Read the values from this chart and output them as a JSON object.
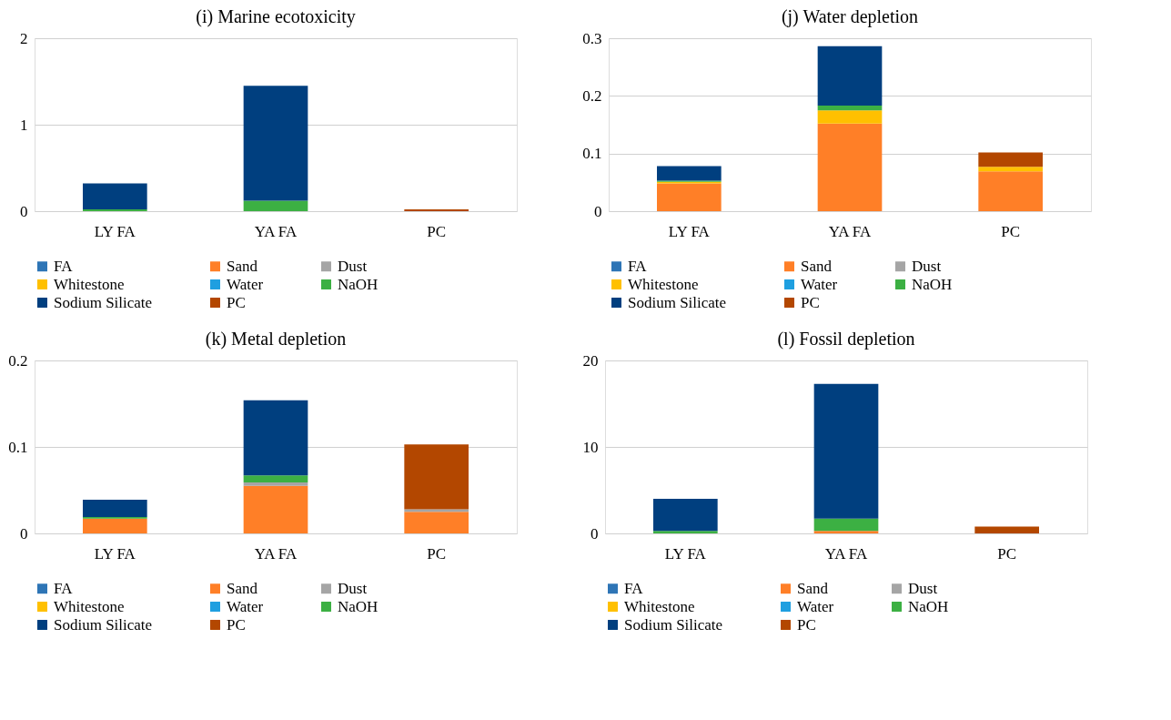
{
  "chart_data": [
    {
      "type": "bar",
      "stacked": true,
      "title": "(i) Marine ecotoxicity",
      "categories": [
        "LY FA",
        "YA FA",
        "PC"
      ],
      "ylim": [
        0,
        2
      ],
      "yticks": [
        0,
        1,
        2
      ],
      "grid": "y",
      "legend": "bottom",
      "series": [
        {
          "name": "FA",
          "color": "#2e75b6",
          "values": [
            null,
            null,
            null
          ]
        },
        {
          "name": "Sand",
          "color": "#ff7f27",
          "values": [
            null,
            null,
            null
          ]
        },
        {
          "name": "Dust",
          "color": "#a5a5a5",
          "values": [
            null,
            null,
            null
          ]
        },
        {
          "name": "Whitestone",
          "color": "#ffc000",
          "values": [
            null,
            null,
            null
          ]
        },
        {
          "name": "Water",
          "color": "#1f9fe0",
          "values": [
            null,
            null,
            null
          ]
        },
        {
          "name": "NaOH",
          "color": "#3cb043",
          "values": [
            0.02,
            0.12,
            null
          ]
        },
        {
          "name": "Sodium Silicate",
          "color": "#003f7f",
          "values": [
            0.3,
            1.33,
            null
          ]
        },
        {
          "name": "PC",
          "color": "#b34700",
          "values": [
            null,
            null,
            0.02
          ]
        }
      ]
    },
    {
      "type": "bar",
      "stacked": true,
      "title": "(j) Water depletion",
      "categories": [
        "LY FA",
        "YA FA",
        "PC"
      ],
      "ylim": [
        0,
        0.3
      ],
      "yticks": [
        0,
        0.1,
        0.2,
        0.3
      ],
      "grid": "y",
      "legend": "bottom",
      "series": [
        {
          "name": "FA",
          "color": "#2e75b6",
          "values": [
            null,
            null,
            null
          ]
        },
        {
          "name": "Sand",
          "color": "#ff7f27",
          "values": [
            0.048,
            0.152,
            0.069
          ]
        },
        {
          "name": "Dust",
          "color": "#a5a5a5",
          "values": [
            null,
            null,
            null
          ]
        },
        {
          "name": "Whitestone",
          "color": "#ffc000",
          "values": [
            0.003,
            0.023,
            0.008
          ]
        },
        {
          "name": "Water",
          "color": "#1f9fe0",
          "values": [
            null,
            null,
            null
          ]
        },
        {
          "name": "NaOH",
          "color": "#3cb043",
          "values": [
            0.002,
            0.008,
            null
          ]
        },
        {
          "name": "Sodium Silicate",
          "color": "#003f7f",
          "values": [
            0.025,
            0.103,
            null
          ]
        },
        {
          "name": "PC",
          "color": "#b34700",
          "values": [
            null,
            null,
            0.025
          ]
        }
      ]
    },
    {
      "type": "bar",
      "stacked": true,
      "title": "(k) Metal depletion",
      "categories": [
        "LY FA",
        "YA FA",
        "PC"
      ],
      "ylim": [
        0,
        0.2
      ],
      "yticks": [
        0,
        0.1,
        0.2
      ],
      "grid": "y",
      "legend": "bottom",
      "series": [
        {
          "name": "FA",
          "color": "#2e75b6",
          "values": [
            null,
            null,
            null
          ]
        },
        {
          "name": "Sand",
          "color": "#ff7f27",
          "values": [
            0.017,
            0.055,
            0.025
          ]
        },
        {
          "name": "Dust",
          "color": "#a5a5a5",
          "values": [
            null,
            0.004,
            0.003
          ]
        },
        {
          "name": "Whitestone",
          "color": "#ffc000",
          "values": [
            null,
            null,
            null
          ]
        },
        {
          "name": "Water",
          "color": "#1f9fe0",
          "values": [
            null,
            null,
            null
          ]
        },
        {
          "name": "NaOH",
          "color": "#3cb043",
          "values": [
            0.002,
            0.008,
            null
          ]
        },
        {
          "name": "Sodium Silicate",
          "color": "#003f7f",
          "values": [
            0.02,
            0.087,
            null
          ]
        },
        {
          "name": "PC",
          "color": "#b34700",
          "values": [
            null,
            null,
            0.075
          ]
        }
      ]
    },
    {
      "type": "bar",
      "stacked": true,
      "title": "(l) Fossil depletion",
      "categories": [
        "LY FA",
        "YA FA",
        "PC"
      ],
      "ylim": [
        0,
        20
      ],
      "yticks": [
        0,
        10,
        20
      ],
      "grid": "y",
      "legend": "bottom",
      "series": [
        {
          "name": "FA",
          "color": "#2e75b6",
          "values": [
            null,
            null,
            null
          ]
        },
        {
          "name": "Sand",
          "color": "#ff7f27",
          "values": [
            null,
            0.3,
            null
          ]
        },
        {
          "name": "Dust",
          "color": "#a5a5a5",
          "values": [
            null,
            null,
            null
          ]
        },
        {
          "name": "Whitestone",
          "color": "#ffc000",
          "values": [
            null,
            null,
            null
          ]
        },
        {
          "name": "Water",
          "color": "#1f9fe0",
          "values": [
            null,
            null,
            null
          ]
        },
        {
          "name": "NaOH",
          "color": "#3cb043",
          "values": [
            0.3,
            1.4,
            null
          ]
        },
        {
          "name": "Sodium Silicate",
          "color": "#003f7f",
          "values": [
            3.7,
            15.6,
            null
          ]
        },
        {
          "name": "PC",
          "color": "#b34700",
          "values": [
            null,
            null,
            0.8
          ]
        }
      ]
    }
  ]
}
